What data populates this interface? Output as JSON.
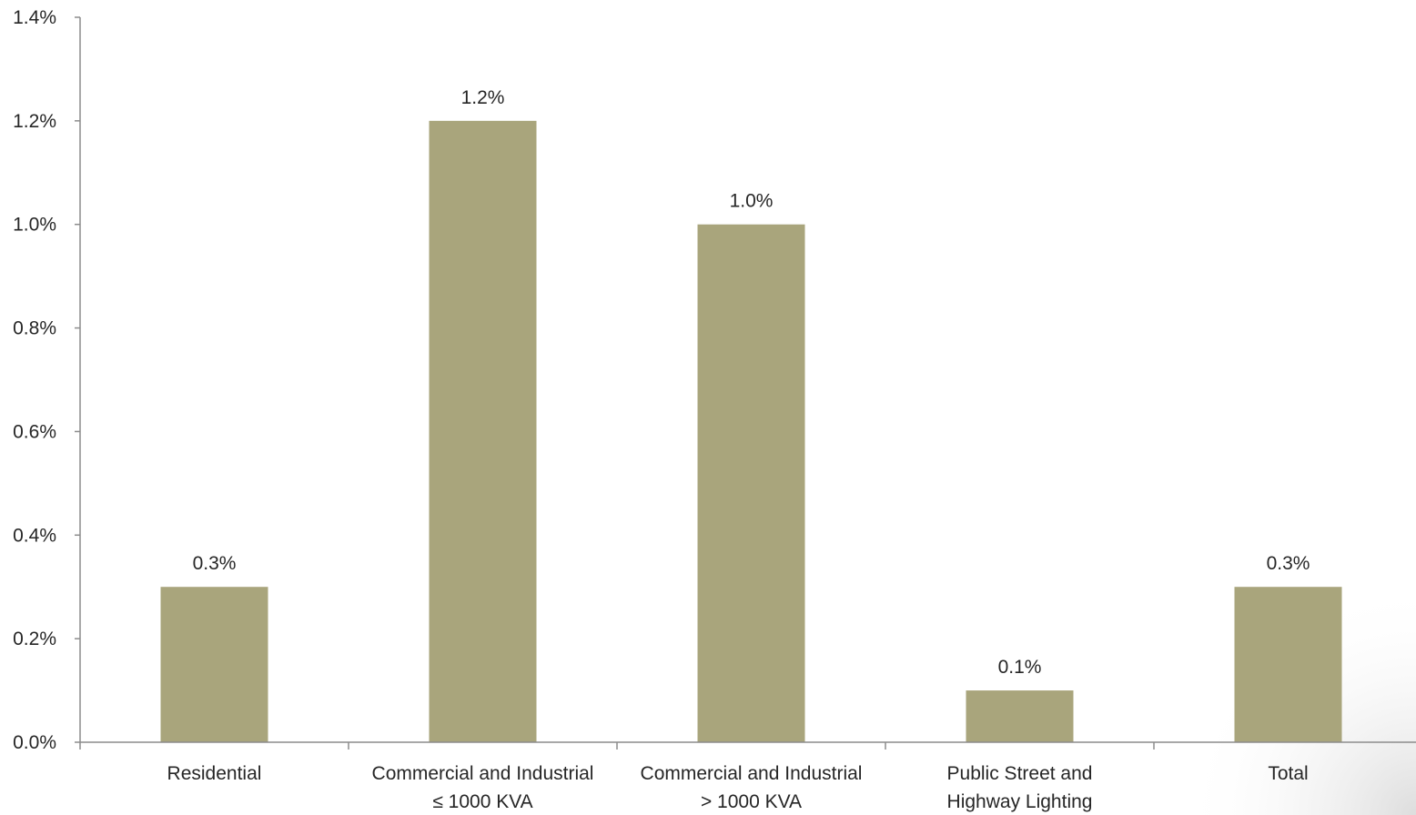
{
  "chart_data": {
    "type": "bar",
    "categories": [
      [
        "Residential"
      ],
      [
        "Commercial and Industrial",
        "≤ 1000 KVA"
      ],
      [
        "Commercial and Industrial",
        "> 1000 KVA"
      ],
      [
        "Public Street and",
        "Highway Lighting"
      ],
      [
        "Total"
      ]
    ],
    "values": [
      0.3,
      1.2,
      1.0,
      0.1,
      0.3
    ],
    "data_labels": [
      "0.3%",
      "1.2%",
      "1.0%",
      "0.1%",
      "0.3%"
    ],
    "ylim": [
      0,
      1.4
    ],
    "yticks": [
      0.0,
      0.2,
      0.4,
      0.6,
      0.8,
      1.0,
      1.2,
      1.4
    ],
    "ytick_labels": [
      "0.0%",
      "0.2%",
      "0.4%",
      "0.6%",
      "0.8%",
      "1.0%",
      "1.2%",
      "1.4%"
    ],
    "title": "",
    "xlabel": "",
    "ylabel": "",
    "grid": false,
    "legend": "none",
    "bar_color": "#a9a57c",
    "axis_color": "#8c8c8c"
  }
}
